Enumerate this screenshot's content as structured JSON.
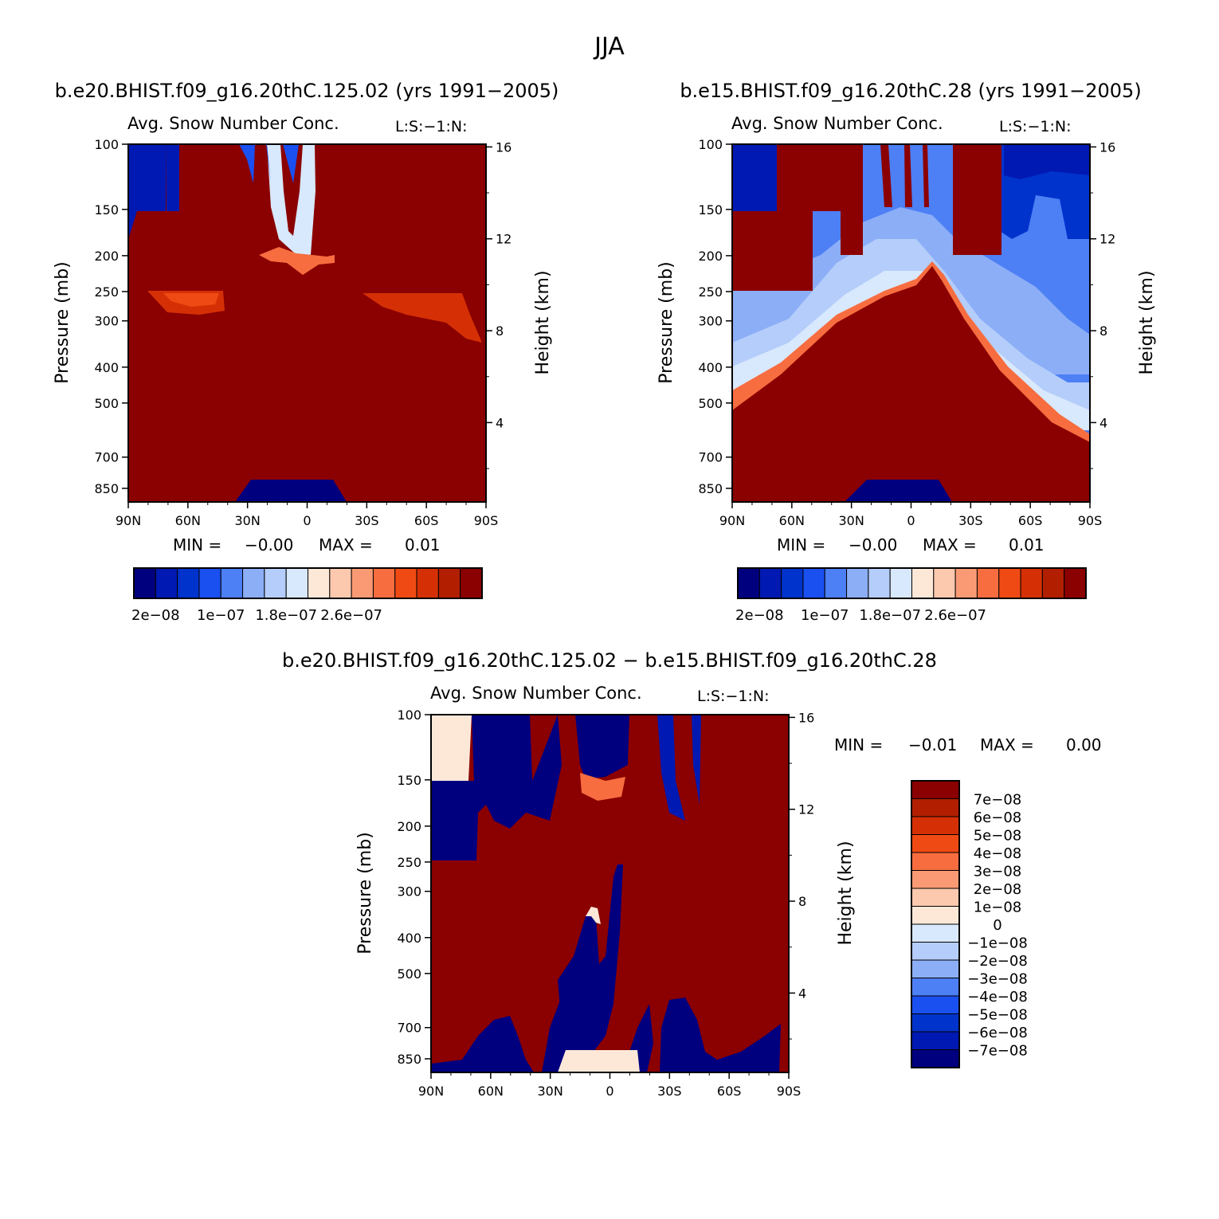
{
  "page_title": "JJA",
  "colors": {
    "c1": "#00007f",
    "c2": "#0019b2",
    "c3": "#0033cc",
    "c4": "#1a4ff0",
    "c5": "#4d7ff5",
    "c6": "#8caef7",
    "c7": "#b4cdfa",
    "c8": "#d8e8fd",
    "c9": "#fde8d8",
    "c10": "#fcc8ae",
    "c11": "#fa9a74",
    "c12": "#f76d40",
    "c13": "#f04a14",
    "c14": "#d53005",
    "c15": "#b21e00",
    "c16": "#8b0000"
  },
  "chart_data": [
    {
      "type": "contour",
      "case_title": "b.e20.BHIST.f09_g16.20thC.125.02 (yrs 1991−2005)",
      "variable": "Avg. Snow Number Conc.",
      "units_tag": "L:S:−1:N:",
      "xlabel": "",
      "ylabel": "Pressure (mb)",
      "ylabel_right": "Height (km)",
      "x_ticks": [
        "90N",
        "60N",
        "30N",
        "0",
        "30S",
        "60S",
        "90S"
      ],
      "y_ticks": [
        100,
        150,
        200,
        250,
        300,
        400,
        500,
        700,
        850
      ],
      "y_right_ticks": [
        16,
        12,
        8,
        4
      ],
      "min_label": "MIN =",
      "min_value": "−0.00",
      "max_label": "MAX =",
      "max_value": "0.01",
      "colorbar_labels": [
        "2e−08",
        "1e−07",
        "1.8e−07",
        "2.6e−07"
      ]
    },
    {
      "type": "contour",
      "case_title": "b.e15.BHIST.f09_g16.20thC.28 (yrs 1991−2005)",
      "variable": "Avg. Snow Number Conc.",
      "units_tag": "L:S:−1:N:",
      "xlabel": "",
      "ylabel": "Pressure (mb)",
      "ylabel_right": "Height (km)",
      "x_ticks": [
        "90N",
        "60N",
        "30N",
        "0",
        "30S",
        "60S",
        "90S"
      ],
      "y_ticks": [
        100,
        150,
        200,
        250,
        300,
        400,
        500,
        700,
        850
      ],
      "y_right_ticks": [
        16,
        12,
        8,
        4
      ],
      "min_label": "MIN =",
      "min_value": "−0.00",
      "max_label": "MAX =",
      "max_value": "0.01",
      "colorbar_labels": [
        "2e−08",
        "1e−07",
        "1.8e−07",
        "2.6e−07"
      ]
    },
    {
      "type": "contour",
      "case_title": "b.e20.BHIST.f09_g16.20thC.125.02 − b.e15.BHIST.f09_g16.20thC.28",
      "variable": "Avg. Snow Number Conc.",
      "units_tag": "L:S:−1:N:",
      "xlabel": "",
      "ylabel": "Pressure (mb)",
      "ylabel_right": "Height (km)",
      "x_ticks": [
        "90N",
        "60N",
        "30N",
        "0",
        "30S",
        "60S",
        "90S"
      ],
      "y_ticks": [
        100,
        150,
        200,
        250,
        300,
        400,
        500,
        700,
        850
      ],
      "y_right_ticks": [
        16,
        12,
        8,
        4
      ],
      "min_label": "MIN =",
      "min_value": "−0.01",
      "max_label": "MAX =",
      "max_value": "0.00",
      "colorbar_labels": [
        "7e−08",
        "6e−08",
        "5e−08",
        "4e−08",
        "3e−08",
        "2e−08",
        "1e−08",
        "0",
        "−1e−08",
        "−2e−08",
        "−3e−08",
        "−4e−08",
        "−5e−08",
        "−6e−08",
        "−7e−08"
      ]
    }
  ]
}
